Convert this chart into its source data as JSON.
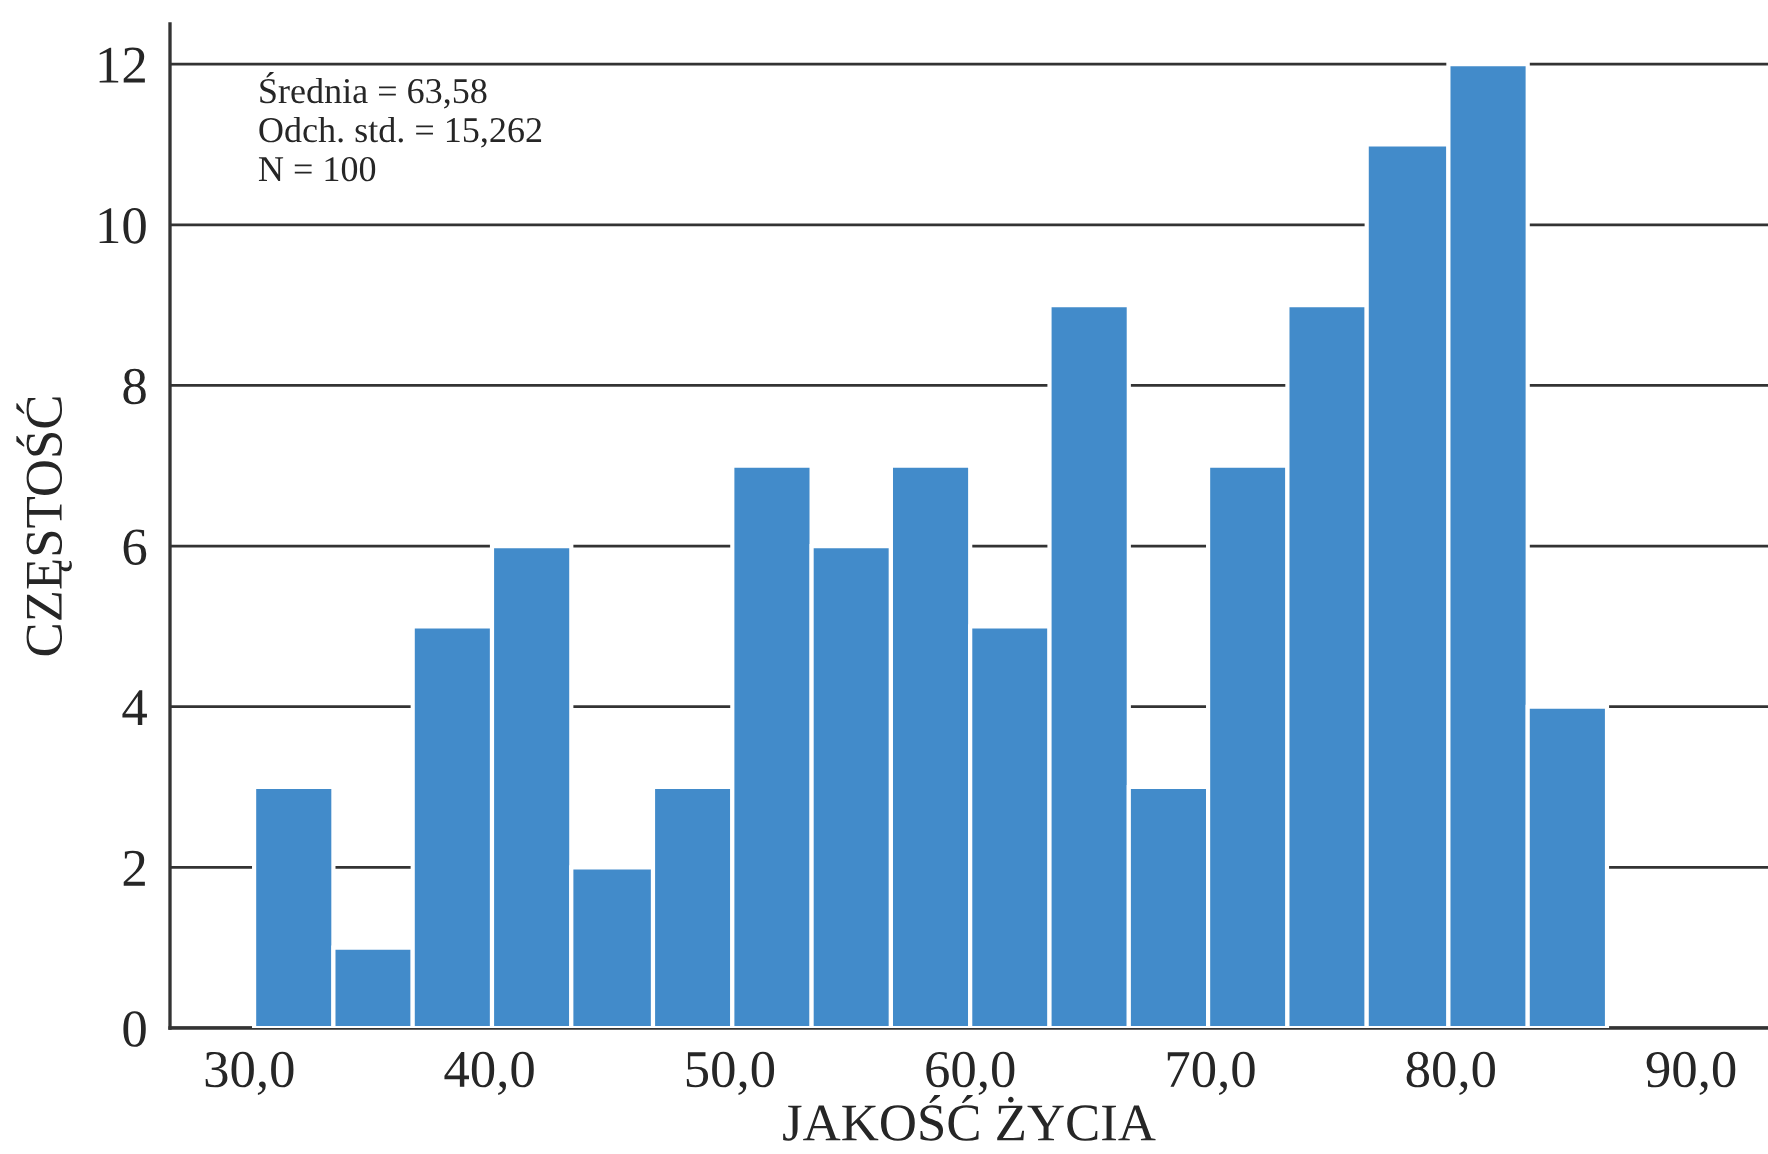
{
  "chart_data": {
    "type": "histogram",
    "xlabel": "JAKOŚĆ ŻYCIA",
    "ylabel": "CZĘSTOŚĆ",
    "bins": [
      30.2,
      33.5,
      36.8,
      40.1,
      43.4,
      46.8,
      50.1,
      53.4,
      56.7,
      60.0,
      63.3,
      66.6,
      69.9,
      73.2,
      76.5,
      79.9,
      83.2,
      86.5
    ],
    "values": [
      3,
      1,
      5,
      6,
      2,
      3,
      7,
      6,
      7,
      5,
      9,
      3,
      7,
      9,
      11,
      12,
      4
    ],
    "color": "#428bca",
    "xlim": [
      26.7,
      93.2
    ],
    "xticks": [
      {
        "value": 30,
        "label": "30,0"
      },
      {
        "value": 40,
        "label": "40,0"
      },
      {
        "value": 50,
        "label": "50,0"
      },
      {
        "value": 60,
        "label": "60,0"
      },
      {
        "value": 70,
        "label": "70,0"
      },
      {
        "value": 80,
        "label": "80,0"
      },
      {
        "value": 90,
        "label": "90,0"
      }
    ],
    "ylim": [
      0,
      12.5
    ],
    "yticks": [
      0,
      2,
      4,
      6,
      8,
      10,
      12
    ],
    "grid": "y",
    "annotations": [
      "Średnia = 63,58\nOdch. std. = 15,262\nN = 100"
    ]
  }
}
